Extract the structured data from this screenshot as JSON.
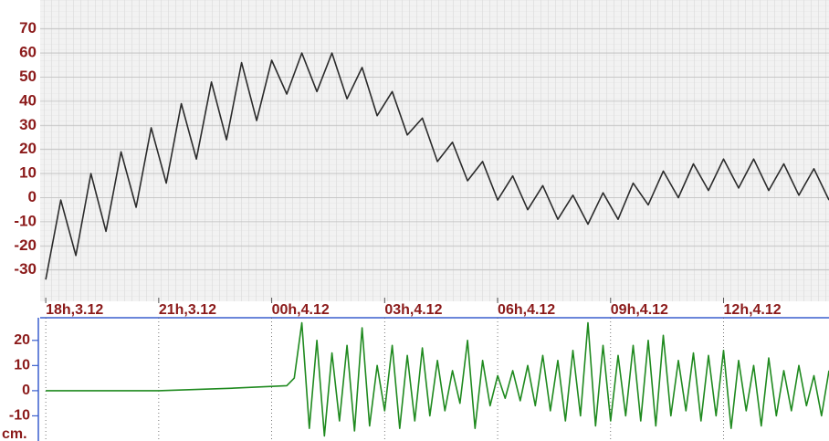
{
  "chart_data": [
    {
      "type": "line",
      "color": "#2b2b2b",
      "x": [
        0,
        0.4,
        0.8,
        1.2,
        1.6,
        2.0,
        2.4,
        2.8,
        3.2,
        3.6,
        4.0,
        4.4,
        4.8,
        5.2,
        5.6,
        6.0,
        6.4,
        6.8,
        7.2,
        7.6,
        8.0,
        8.4,
        8.8,
        9.2,
        9.6,
        10.0,
        10.4,
        10.8,
        11.2,
        11.6,
        12.0,
        12.4,
        12.8,
        13.2,
        13.6,
        14.0,
        14.4,
        14.8,
        15.2,
        15.6,
        16.0,
        16.4,
        16.8,
        17.2,
        17.6,
        18.0,
        18.4,
        18.8,
        19.2,
        19.6,
        20.0,
        20.4,
        20.8
      ],
      "values": [
        -34,
        -1,
        -24,
        10,
        -14,
        19,
        -4,
        29,
        6,
        39,
        16,
        48,
        24,
        56,
        32,
        57,
        43,
        60,
        44,
        60,
        41,
        54,
        34,
        44,
        26,
        33,
        15,
        23,
        7,
        15,
        -1,
        9,
        -5,
        5,
        -9,
        1,
        -11,
        2,
        -9,
        6,
        -3,
        11,
        0,
        14,
        3,
        16,
        4,
        16,
        3,
        14,
        1,
        12,
        -1
      ],
      "xlim": [
        -0.1,
        20.8
      ],
      "xticks": [
        {
          "value": 0,
          "label": "18h,3.12"
        },
        {
          "value": 3,
          "label": "21h,3.12"
        },
        {
          "value": 6,
          "label": "00h,4.12"
        },
        {
          "value": 9,
          "label": "03h,4.12"
        },
        {
          "value": 12,
          "label": "06h,4.12"
        },
        {
          "value": 15,
          "label": "09h,4.12"
        },
        {
          "value": 18,
          "label": "12h,4.12"
        }
      ],
      "ylim": [
        -43,
        82
      ],
      "yticks": [
        70,
        60,
        50,
        40,
        30,
        20,
        10,
        0,
        -10,
        -20,
        -30
      ]
    },
    {
      "type": "line",
      "color": "#1f8a1f",
      "y_label": "cm.",
      "x": [
        0,
        3,
        5,
        6.4,
        6.6,
        6.8,
        7.0,
        7.2,
        7.4,
        7.6,
        7.8,
        8.0,
        8.2,
        8.4,
        8.6,
        8.8,
        9.0,
        9.2,
        9.4,
        9.6,
        9.8,
        10.0,
        10.2,
        10.4,
        10.6,
        10.8,
        11.0,
        11.2,
        11.4,
        11.6,
        11.8,
        12.0,
        12.2,
        12.4,
        12.6,
        12.8,
        13.0,
        13.2,
        13.4,
        13.6,
        13.8,
        14.0,
        14.2,
        14.4,
        14.6,
        14.8,
        15.0,
        15.2,
        15.4,
        15.6,
        15.8,
        16.0,
        16.2,
        16.4,
        16.6,
        16.8,
        17.0,
        17.2,
        17.4,
        17.6,
        17.8,
        18.0,
        18.2,
        18.4,
        18.6,
        18.8,
        19.0,
        19.2,
        19.4,
        19.6,
        19.8,
        20.0,
        20.2,
        20.4,
        20.6,
        20.8
      ],
      "values": [
        0,
        0,
        1,
        2,
        5,
        27,
        -15,
        20,
        -18,
        15,
        -12,
        18,
        -16,
        25,
        -14,
        10,
        -8,
        18,
        -15,
        14,
        -12,
        17,
        -10,
        12,
        -8,
        8,
        -5,
        20,
        -15,
        12,
        -6,
        6,
        -3,
        8,
        -4,
        10,
        -6,
        14,
        -8,
        12,
        -12,
        16,
        -10,
        27,
        -14,
        18,
        -12,
        14,
        -10,
        18,
        -12,
        20,
        -14,
        22,
        -10,
        12,
        -8,
        15,
        -12,
        14,
        -10,
        16,
        -15,
        12,
        -8,
        10,
        -14,
        13,
        -10,
        8,
        -8,
        10,
        -6,
        6,
        -10,
        8
      ],
      "xlim": [
        -0.1,
        20.8
      ],
      "xticks": [
        0,
        3,
        6,
        9,
        12,
        15,
        18
      ],
      "ylim": [
        -20,
        29
      ],
      "yticks": [
        20,
        10,
        0,
        -10
      ]
    }
  ]
}
